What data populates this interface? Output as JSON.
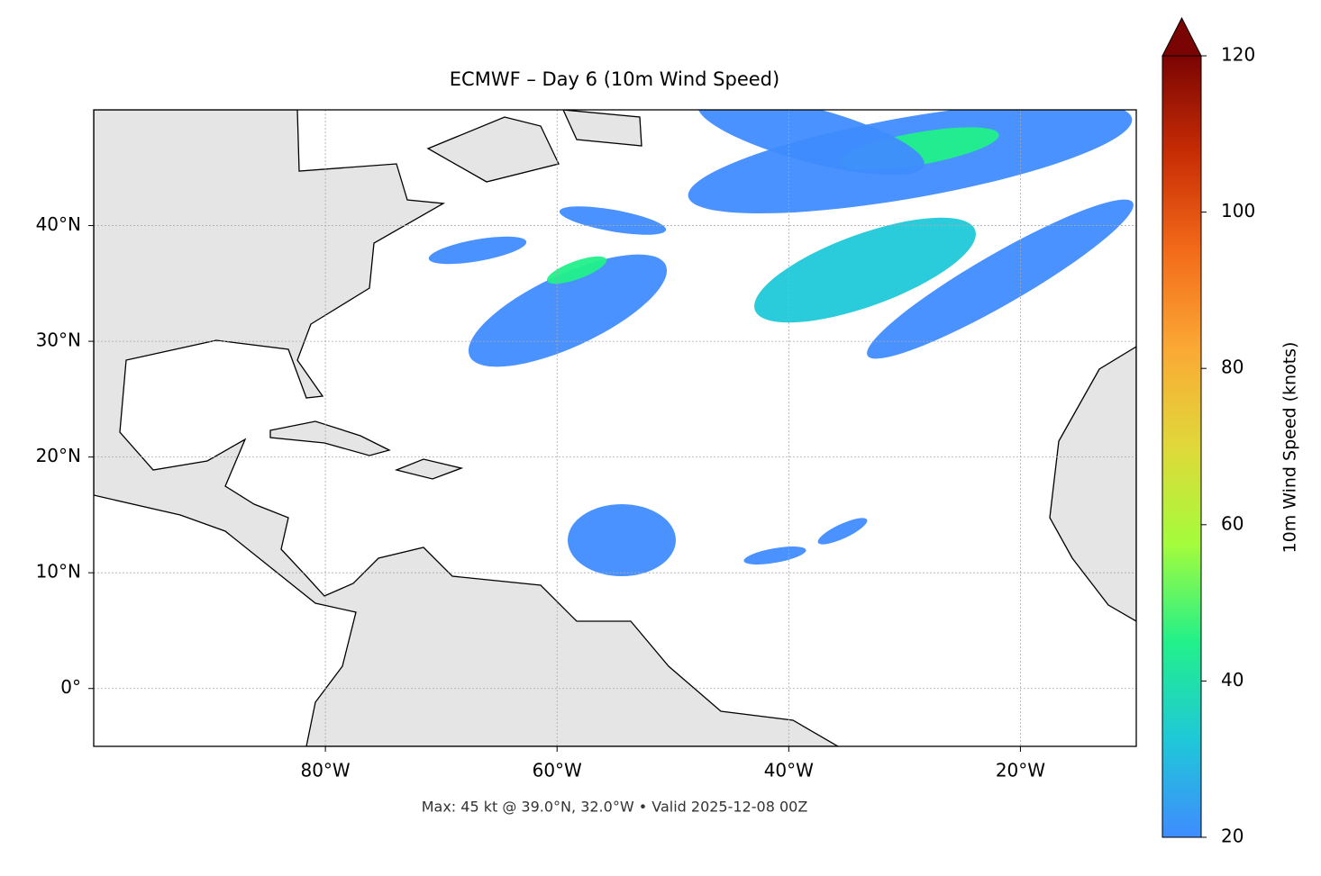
{
  "chart_data": {
    "type": "map",
    "title": "ECMWF – Day 6 (10m Wind Speed)",
    "footer": "Max: 45 kt @ 39.0°N, 32.0°W • Valid 2025-12-08 00Z",
    "xlim": [
      -100,
      -10
    ],
    "ylim": [
      -5,
      50
    ],
    "xticks": [
      {
        "value": -80,
        "label": "80°W"
      },
      {
        "value": -60,
        "label": "60°W"
      },
      {
        "value": -40,
        "label": "40°W"
      },
      {
        "value": -20,
        "label": "20°W"
      }
    ],
    "yticks": [
      {
        "value": 0,
        "label": "0°"
      },
      {
        "value": 10,
        "label": "10°N"
      },
      {
        "value": 20,
        "label": "20°N"
      },
      {
        "value": 30,
        "label": "30°N"
      },
      {
        "value": 40,
        "label": "40°N"
      }
    ],
    "grid": true,
    "colorbar": {
      "label": "10m Wind Speed (knots)",
      "lim": [
        20,
        120
      ],
      "ticks": [
        20,
        40,
        60,
        80,
        100,
        120
      ],
      "colors": [
        "#3f8cff",
        "#1fc8d8",
        "#22f08a",
        "#a4fc3c",
        "#e0d83a",
        "#fba935",
        "#f36b1a",
        "#c82d04",
        "#7a0403"
      ]
    }
  }
}
